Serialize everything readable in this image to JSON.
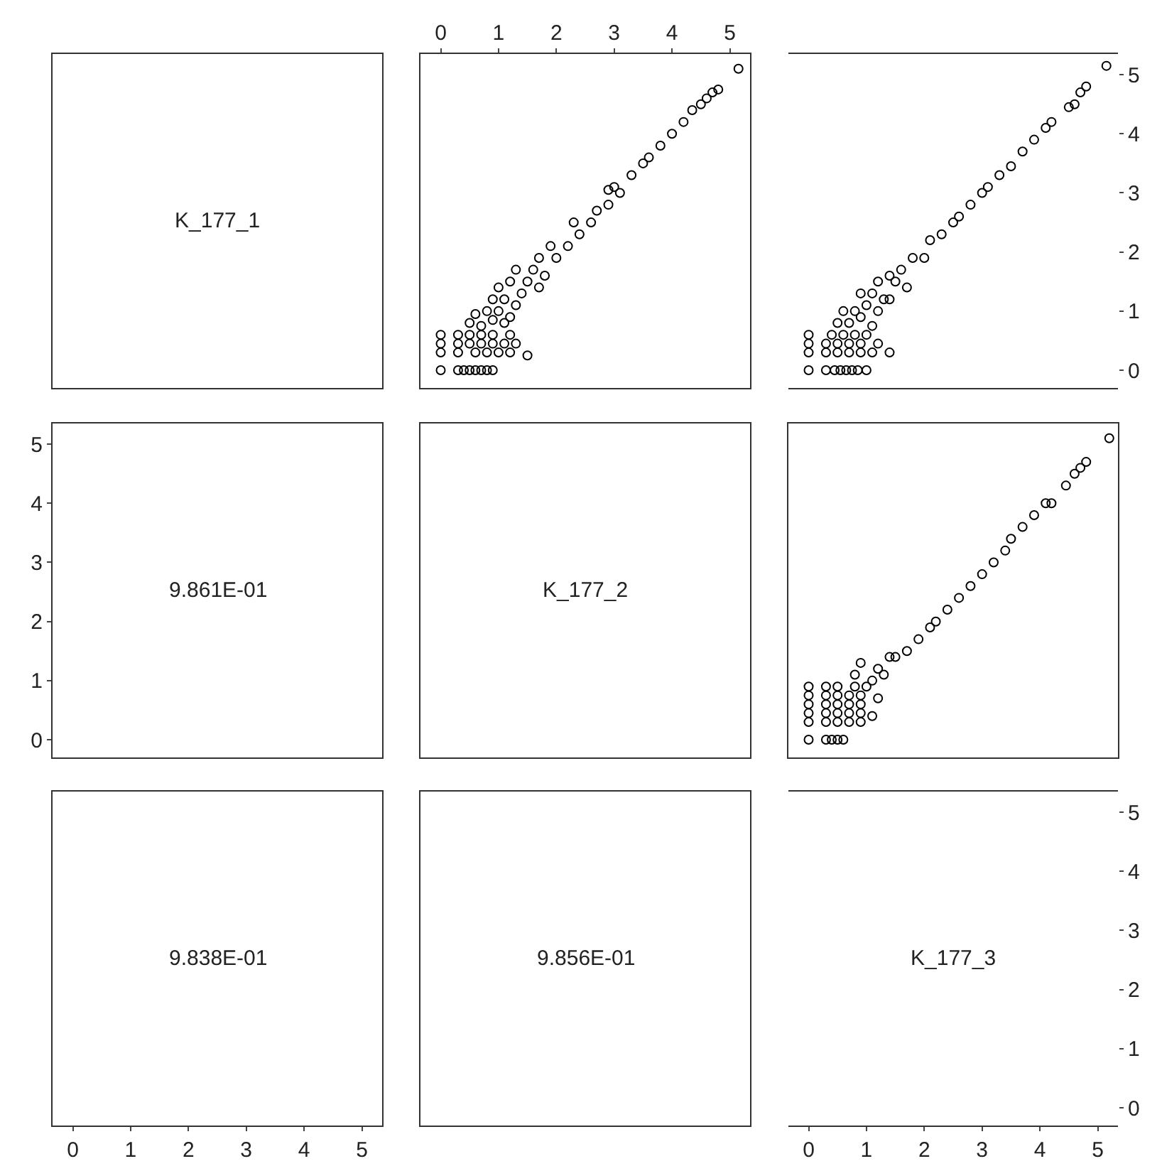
{
  "chart_data": [
    {
      "type": "other",
      "annotations": [
        "K_177_1"
      ]
    },
    {
      "type": "scatter",
      "xlim": [
        -0.35,
        5.35
      ],
      "x2lim": [
        -0.35,
        5.35
      ],
      "x2ticks": [
        0,
        1,
        2,
        3,
        4,
        5
      ],
      "ylim": [
        -0.3,
        5.35
      ],
      "tick_labels": "x",
      "marker": "circle",
      "series": [
        {
          "color": "#000000",
          "x": [
            0,
            0.3,
            0.4,
            0.5,
            0.6,
            0.7,
            0.8,
            0.9,
            0,
            0.3,
            0.6,
            0.8,
            1.0,
            1.2,
            1.5,
            0,
            0.3,
            0.5,
            0.7,
            0.9,
            1.1,
            1.3,
            0,
            0.3,
            0.5,
            0.7,
            0.9,
            1.2,
            0.5,
            0.7,
            0.9,
            1.1,
            0.6,
            0.8,
            1.0,
            1.2,
            1.3,
            0.9,
            1.1,
            1.4,
            1.0,
            1.2,
            1.5,
            1.7,
            1.3,
            1.6,
            1.8,
            1.7,
            2.0,
            1.9,
            2.2,
            2.4,
            2.3,
            2.6,
            2.7,
            2.9,
            3.0,
            2.9,
            3.1,
            3.3,
            3.5,
            3.6,
            3.8,
            4.0,
            4.2,
            4.35,
            4.5,
            4.6,
            4.7,
            4.8,
            5.15
          ],
          "values": [
            0,
            0,
            0,
            0,
            0,
            0,
            0,
            0,
            0.3,
            0.3,
            0.3,
            0.3,
            0.3,
            0.3,
            0.25,
            0.45,
            0.45,
            0.45,
            0.45,
            0.45,
            0.45,
            0.45,
            0.6,
            0.6,
            0.6,
            0.6,
            0.6,
            0.6,
            0.8,
            0.75,
            0.85,
            0.8,
            0.95,
            1.0,
            1.0,
            0.9,
            1.1,
            1.2,
            1.2,
            1.3,
            1.4,
            1.5,
            1.5,
            1.4,
            1.7,
            1.7,
            1.6,
            1.9,
            1.9,
            2.1,
            2.1,
            2.3,
            2.5,
            2.5,
            2.7,
            2.8,
            3.1,
            3.05,
            3.0,
            3.3,
            3.5,
            3.6,
            3.8,
            4.0,
            4.2,
            4.4,
            4.5,
            4.6,
            4.7,
            4.75,
            5.1
          ]
        }
      ]
    },
    {
      "type": "scatter",
      "xlim": [
        -0.35,
        5.35
      ],
      "y2lim": [
        -0.3,
        5.35
      ],
      "y2ticks": [
        0,
        1,
        2,
        3,
        4,
        5
      ],
      "tick_labels": "y",
      "marker": "circle",
      "series": [
        {
          "color": "#000000",
          "axis": "y2",
          "x": [
            0,
            0.3,
            0.45,
            0.55,
            0.65,
            0.75,
            0.85,
            1.0,
            0,
            0.3,
            0.5,
            0.7,
            0.9,
            1.1,
            1.4,
            0,
            0.3,
            0.5,
            0.7,
            0.9,
            1.2,
            0,
            0.4,
            0.6,
            0.8,
            1.0,
            0.5,
            0.7,
            0.9,
            1.1,
            0.6,
            0.8,
            1.0,
            1.2,
            1.3,
            0.9,
            1.1,
            1.4,
            1.2,
            1.5,
            1.7,
            1.4,
            1.6,
            1.8,
            2.0,
            2.1,
            2.3,
            2.5,
            2.6,
            2.8,
            3.0,
            3.1,
            3.3,
            3.5,
            3.7,
            3.9,
            4.1,
            4.2,
            4.5,
            4.6,
            4.7,
            4.8,
            5.15
          ],
          "values": [
            0,
            0,
            0,
            0,
            0,
            0,
            0,
            0,
            0.3,
            0.3,
            0.3,
            0.3,
            0.3,
            0.3,
            0.3,
            0.45,
            0.45,
            0.45,
            0.45,
            0.45,
            0.45,
            0.6,
            0.6,
            0.6,
            0.6,
            0.6,
            0.8,
            0.8,
            0.9,
            0.75,
            1.0,
            1.0,
            1.1,
            1.0,
            1.2,
            1.3,
            1.3,
            1.2,
            1.5,
            1.5,
            1.4,
            1.6,
            1.7,
            1.9,
            1.9,
            2.2,
            2.3,
            2.5,
            2.6,
            2.8,
            3.0,
            3.1,
            3.3,
            3.45,
            3.7,
            3.9,
            4.1,
            4.2,
            4.45,
            4.5,
            4.7,
            4.8,
            5.15
          ]
        }
      ]
    },
    {
      "type": "scatter",
      "categories": [
        null
      ],
      "ylim": [
        -0.3,
        5.35
      ],
      "yticks": [
        0,
        1,
        2,
        3,
        4,
        5
      ],
      "tick_labels": "y",
      "annotations": [
        "9.861E-01"
      ]
    },
    {
      "type": "other",
      "annotations": [
        "K_177_2"
      ]
    },
    {
      "type": "scatter",
      "xlim": [
        -0.35,
        5.35
      ],
      "ylim": [
        -0.3,
        5.35
      ],
      "tick_labels": false,
      "marker": "circle",
      "series": [
        {
          "color": "#000000",
          "x": [
            0,
            0.3,
            0.4,
            0.5,
            0.6,
            0,
            0.3,
            0.5,
            0.7,
            0.9,
            0,
            0.3,
            0.5,
            0.7,
            0.9,
            1.1,
            0,
            0.3,
            0.5,
            0.7,
            0.9,
            0,
            0.3,
            0.5,
            0.7,
            0.9,
            1.2,
            0,
            0.3,
            0.5,
            0.8,
            1.0,
            0.8,
            1.1,
            1.3,
            0.9,
            1.2,
            1.4,
            1.5,
            1.7,
            1.9,
            2.1,
            2.2,
            2.4,
            2.6,
            2.8,
            3.0,
            3.2,
            3.4,
            3.5,
            3.7,
            3.9,
            4.1,
            4.2,
            4.45,
            4.6,
            4.7,
            4.8,
            5.2
          ],
          "values": [
            0,
            0,
            0,
            0,
            0,
            0.3,
            0.3,
            0.3,
            0.3,
            0.3,
            0.45,
            0.45,
            0.45,
            0.45,
            0.45,
            0.4,
            0.6,
            0.6,
            0.6,
            0.6,
            0.6,
            0.75,
            0.75,
            0.75,
            0.75,
            0.75,
            0.7,
            0.9,
            0.9,
            0.9,
            0.9,
            0.9,
            1.1,
            1.0,
            1.1,
            1.3,
            1.2,
            1.4,
            1.4,
            1.5,
            1.7,
            1.9,
            2.0,
            2.2,
            2.4,
            2.6,
            2.8,
            3.0,
            3.2,
            3.4,
            3.6,
            3.8,
            4.0,
            4.0,
            4.3,
            4.5,
            4.6,
            4.7,
            5.1
          ]
        }
      ]
    },
    {
      "type": "scatter",
      "xlim": [
        -0.35,
        5.35
      ],
      "xticks": [
        0,
        1,
        2,
        3,
        4,
        5
      ],
      "orientation": "horizontal",
      "categories": [
        null
      ],
      "tick_labels": "x",
      "annotations": [
        "9.838E-01"
      ]
    },
    {
      "type": "other",
      "annotations": [
        "9.856E-01"
      ]
    },
    {
      "type": "scatter",
      "xlim": [
        -0.35,
        5.35
      ],
      "xticks": [
        0,
        1,
        2,
        3,
        4,
        5
      ],
      "y2lim": [
        -0.3,
        5.35
      ],
      "y2ticks": [
        0,
        1,
        2,
        3,
        4,
        5
      ],
      "annotations": [
        "K_177_3"
      ]
    }
  ]
}
